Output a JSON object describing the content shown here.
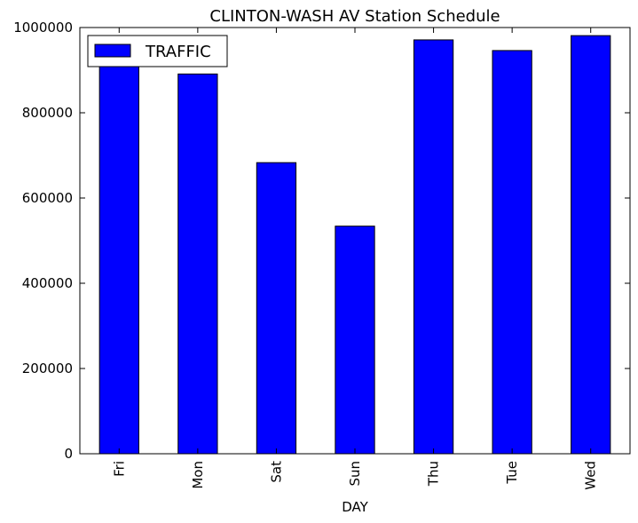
{
  "chart_data": {
    "type": "bar",
    "title": "CLINTON-WASH AV Station Schedule",
    "xlabel": "DAY",
    "ylabel": "",
    "categories": [
      "Fri",
      "Mon",
      "Sat",
      "Sun",
      "Thu",
      "Tue",
      "Wed"
    ],
    "series": [
      {
        "name": "TRAFFIC",
        "values": [
          915000,
          891000,
          683000,
          534000,
          971000,
          946000,
          981000
        ],
        "color": "#0000ff"
      }
    ],
    "ylim": [
      0,
      1000000
    ],
    "yticks": [
      "0",
      "200000",
      "400000",
      "600000",
      "800000",
      "1000000"
    ],
    "ytick_values": [
      0,
      200000,
      400000,
      600000,
      800000,
      1000000
    ],
    "grid": false,
    "legend_position": "top-left"
  }
}
